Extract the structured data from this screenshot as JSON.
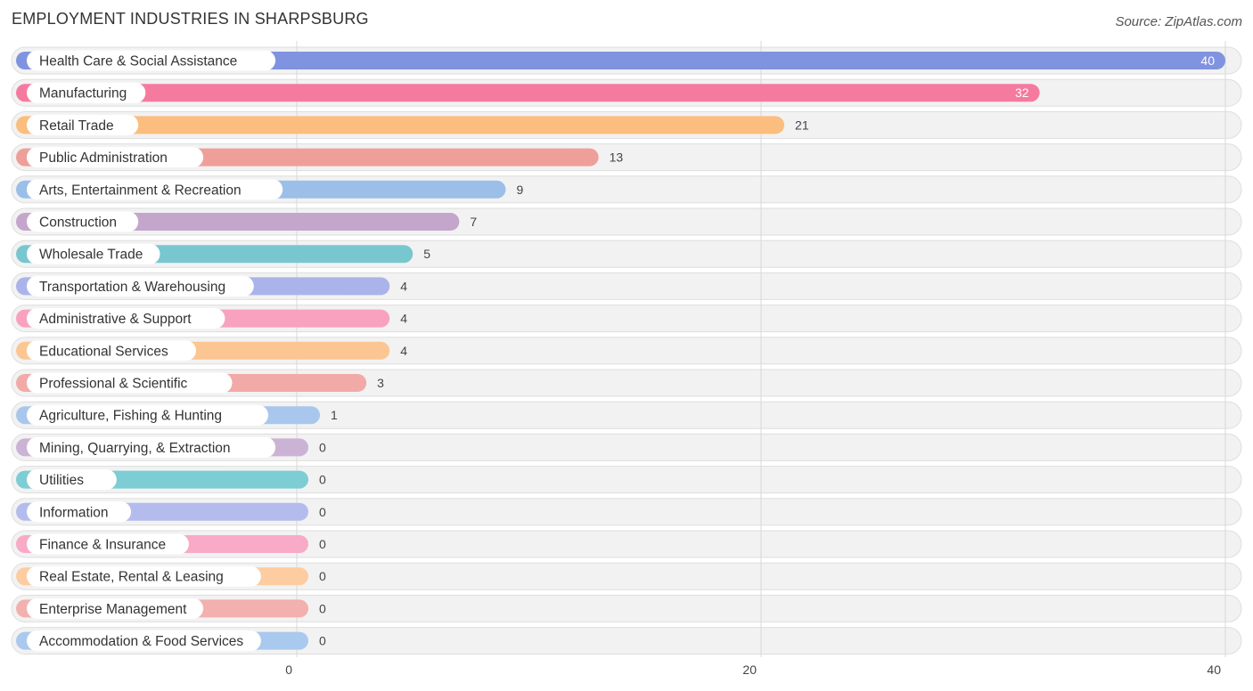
{
  "title": "EMPLOYMENT INDUSTRIES IN SHARPSBURG",
  "source": "Source: ZipAtlas.com",
  "chart_data": {
    "type": "bar",
    "orientation": "horizontal",
    "title": "EMPLOYMENT INDUSTRIES IN SHARPSBURG",
    "xlim": [
      0,
      40
    ],
    "xticks": [
      0,
      20,
      40
    ],
    "grid": true,
    "categories": [
      "Health Care & Social Assistance",
      "Manufacturing",
      "Retail Trade",
      "Public Administration",
      "Arts, Entertainment & Recreation",
      "Construction",
      "Wholesale Trade",
      "Transportation & Warehousing",
      "Administrative & Support",
      "Educational Services",
      "Professional & Scientific",
      "Agriculture, Fishing & Hunting",
      "Mining, Quarrying, & Extraction",
      "Utilities",
      "Information",
      "Finance & Insurance",
      "Real Estate, Rental & Leasing",
      "Enterprise Management",
      "Accommodation & Food Services"
    ],
    "values": [
      40,
      32,
      21,
      13,
      9,
      7,
      5,
      4,
      4,
      4,
      3,
      1,
      0,
      0,
      0,
      0,
      0,
      0,
      0
    ],
    "colors": [
      "#8093e0",
      "#f57aa0",
      "#fbbe7e",
      "#ee9f9a",
      "#9bbfe8",
      "#c4a6cc",
      "#78c7cf",
      "#aab4ea",
      "#f8a2bf",
      "#fcc693",
      "#f1aaa8",
      "#a9c7ec",
      "#cbb3d6",
      "#7ccdd4",
      "#b4bcee",
      "#f8aac6",
      "#fdcca0",
      "#f2b0ae",
      "#aac9ee"
    ]
  }
}
